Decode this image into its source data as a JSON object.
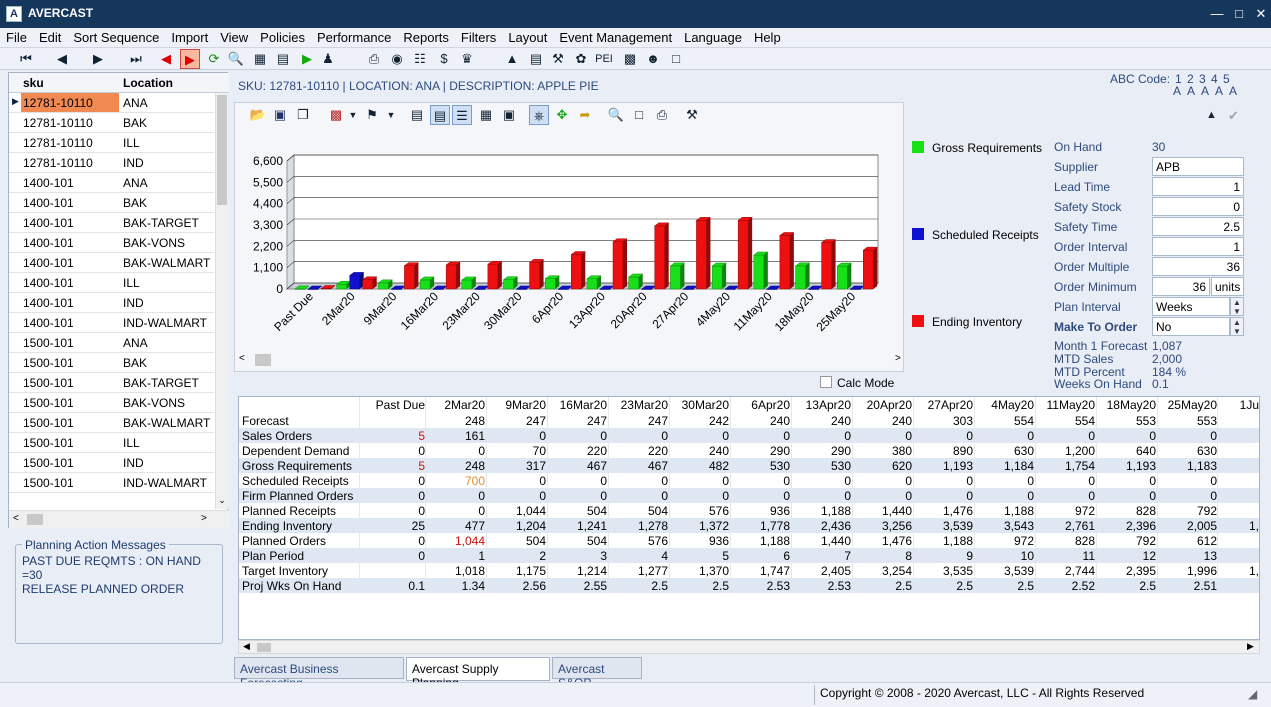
{
  "app": {
    "title": "AVERCAST",
    "icon_letter": "A"
  },
  "menu": [
    "File",
    "Edit",
    "Sort Sequence",
    "Import",
    "View",
    "Policies",
    "Performance",
    "Reports",
    "Filters",
    "Layout",
    "Event Management",
    "Language",
    "Help"
  ],
  "sku_grid": {
    "headers": [
      "sku",
      "Location"
    ],
    "rows": [
      [
        "12781-10110",
        "ANA"
      ],
      [
        "12781-10110",
        "BAK"
      ],
      [
        "12781-10110",
        "ILL"
      ],
      [
        "12781-10110",
        "IND"
      ],
      [
        "1400-101",
        "ANA"
      ],
      [
        "1400-101",
        "BAK"
      ],
      [
        "1400-101",
        "BAK-TARGET"
      ],
      [
        "1400-101",
        "BAK-VONS"
      ],
      [
        "1400-101",
        "BAK-WALMART"
      ],
      [
        "1400-101",
        "ILL"
      ],
      [
        "1400-101",
        "IND"
      ],
      [
        "1400-101",
        "IND-WALMART"
      ],
      [
        "1500-101",
        "ANA"
      ],
      [
        "1500-101",
        "BAK"
      ],
      [
        "1500-101",
        "BAK-TARGET"
      ],
      [
        "1500-101",
        "BAK-VONS"
      ],
      [
        "1500-101",
        "BAK-WALMART"
      ],
      [
        "1500-101",
        "ILL"
      ],
      [
        "1500-101",
        "IND"
      ],
      [
        "1500-101",
        "IND-WALMART"
      ]
    ]
  },
  "planning_messages": {
    "title": "Planning Action Messages",
    "lines": [
      "PAST DUE REQMTS : ON HAND =30",
      "RELEASE PLANNED ORDER"
    ]
  },
  "sku_info": "SKU: 12781-10110  |  LOCATION: ANA  |  DESCRIPTION: APPLE PIE",
  "abc": {
    "label": "ABC Code:",
    "codes": "1 2 3 4 5",
    "letters": "A A A A A"
  },
  "colors": {
    "gross": "#18e018",
    "scheduled": "#1010d0",
    "ending": "#ee1010",
    "tab_text": "#2e4a7e",
    "highlight": "#f08a52"
  },
  "chart_data": {
    "type": "bar",
    "categories": [
      "Past Due",
      "2Mar20",
      "9Mar20",
      "16Mar20",
      "23Mar20",
      "30Mar20",
      "6Apr20",
      "13Apr20",
      "20Apr20",
      "27Apr20",
      "4May20",
      "11May20",
      "18May20",
      "25May20"
    ],
    "series": [
      {
        "name": "Gross Requirements",
        "values": [
          5,
          248,
          317,
          467,
          467,
          482,
          530,
          530,
          620,
          1193,
          1184,
          1754,
          1193,
          1183
        ]
      },
      {
        "name": "Scheduled Receipts",
        "values": [
          0,
          700,
          0,
          0,
          0,
          0,
          0,
          0,
          0,
          0,
          0,
          0,
          0,
          0
        ]
      },
      {
        "name": "Ending Inventory",
        "values": [
          25,
          477,
          1204,
          1241,
          1278,
          1372,
          1778,
          2436,
          3256,
          3539,
          3543,
          2761,
          2396,
          2005
        ]
      }
    ],
    "yticks": [
      "0",
      "1,100",
      "2,200",
      "3,300",
      "4,400",
      "5,500",
      "6,600"
    ],
    "ylim": [
      0,
      6600
    ],
    "grid": true
  },
  "legend": [
    "Gross Requirements",
    "Scheduled Receipts",
    "Ending Inventory"
  ],
  "params": {
    "on_hand": {
      "label": "On Hand",
      "value": "30"
    },
    "supplier": {
      "label": "Supplier",
      "value": "APB"
    },
    "lead_time": {
      "label": "Lead Time",
      "value": "1"
    },
    "safety_stock": {
      "label": "Safety Stock",
      "value": "0"
    },
    "safety_time": {
      "label": "Safety Time",
      "value": "2.5"
    },
    "order_interval": {
      "label": "Order Interval",
      "value": "1"
    },
    "order_multiple": {
      "label": "Order Multiple",
      "value": "36"
    },
    "order_minimum": {
      "label": "Order Minimum",
      "value": "36",
      "unit": "units"
    },
    "plan_interval": {
      "label": "Plan Interval",
      "value": "Weeks"
    },
    "make_to_order": {
      "label": "Make To Order",
      "value": "No"
    },
    "month1_forecast": {
      "label": "Month 1 Forecast",
      "value": "1,087"
    },
    "mtd_sales": {
      "label": "MTD Sales",
      "value": "2,000"
    },
    "mtd_percent": {
      "label": "MTD Percent",
      "value": "184 %"
    },
    "weeks_on_hand": {
      "label": "Weeks On Hand",
      "value": "0.1"
    }
  },
  "calc_mode": "Calc Mode",
  "grid": {
    "columns": [
      "Past Due",
      "2Mar20",
      "9Mar20",
      "16Mar20",
      "23Mar20",
      "30Mar20",
      "6Apr20",
      "13Apr20",
      "20Apr20",
      "27Apr20",
      "4May20",
      "11May20",
      "18May20",
      "25May20",
      "1Ju"
    ],
    "rows": [
      {
        "label": "Forecast",
        "values": [
          "",
          "248",
          "247",
          "247",
          "247",
          "242",
          "240",
          "240",
          "240",
          "303",
          "554",
          "554",
          "553",
          "553",
          ""
        ]
      },
      {
        "label": "Sales Orders",
        "values": [
          "5",
          "161",
          "0",
          "0",
          "0",
          "0",
          "0",
          "0",
          "0",
          "0",
          "0",
          "0",
          "0",
          "0",
          ""
        ]
      },
      {
        "label": "Dependent Demand",
        "values": [
          "0",
          "0",
          "70",
          "220",
          "220",
          "240",
          "290",
          "290",
          "380",
          "890",
          "630",
          "1,200",
          "640",
          "630",
          ""
        ]
      },
      {
        "label": "Gross Requirements",
        "values": [
          "5",
          "248",
          "317",
          "467",
          "467",
          "482",
          "530",
          "530",
          "620",
          "1,193",
          "1,184",
          "1,754",
          "1,193",
          "1,183",
          ""
        ]
      },
      {
        "label": "Scheduled Receipts",
        "values": [
          "0",
          "700",
          "0",
          "0",
          "0",
          "0",
          "0",
          "0",
          "0",
          "0",
          "0",
          "0",
          "0",
          "0",
          ""
        ]
      },
      {
        "label": "Firm Planned Orders",
        "values": [
          "0",
          "0",
          "0",
          "0",
          "0",
          "0",
          "0",
          "0",
          "0",
          "0",
          "0",
          "0",
          "0",
          "0",
          ""
        ]
      },
      {
        "label": "Planned Receipts",
        "values": [
          "0",
          "0",
          "1,044",
          "504",
          "504",
          "576",
          "936",
          "1,188",
          "1,440",
          "1,476",
          "1,188",
          "972",
          "828",
          "792",
          ""
        ]
      },
      {
        "label": "Ending Inventory",
        "values": [
          "25",
          "477",
          "1,204",
          "1,241",
          "1,278",
          "1,372",
          "1,778",
          "2,436",
          "3,256",
          "3,539",
          "3,543",
          "2,761",
          "2,396",
          "2,005",
          "1,"
        ]
      },
      {
        "label": "Planned Orders",
        "values": [
          "0",
          "1,044",
          "504",
          "504",
          "576",
          "936",
          "1,188",
          "1,440",
          "1,476",
          "1,188",
          "972",
          "828",
          "792",
          "612",
          ""
        ]
      },
      {
        "label": "Plan Period",
        "values": [
          "0",
          "1",
          "2",
          "3",
          "4",
          "5",
          "6",
          "7",
          "8",
          "9",
          "10",
          "11",
          "12",
          "13",
          ""
        ]
      },
      {
        "label": "Target Inventory",
        "values": [
          "",
          "1,018",
          "1,175",
          "1,214",
          "1,277",
          "1,370",
          "1,747",
          "2,405",
          "3,254",
          "3,535",
          "3,539",
          "2,744",
          "2,395",
          "1,996",
          "1,"
        ]
      },
      {
        "label": "Proj Wks On Hand",
        "values": [
          "0.1",
          "1.34",
          "2.56",
          "2.55",
          "2.5",
          "2.5",
          "2.53",
          "2.53",
          "2.5",
          "2.5",
          "2.5",
          "2.52",
          "2.5",
          "2.51",
          ""
        ]
      }
    ]
  },
  "tabs": [
    "Avercast Business Forecasting",
    "Avercast Supply Planning",
    "Avercast S&OP"
  ],
  "copyright": "Copyright © 2008 - 2020 Avercast, LLC - All Rights Reserved"
}
